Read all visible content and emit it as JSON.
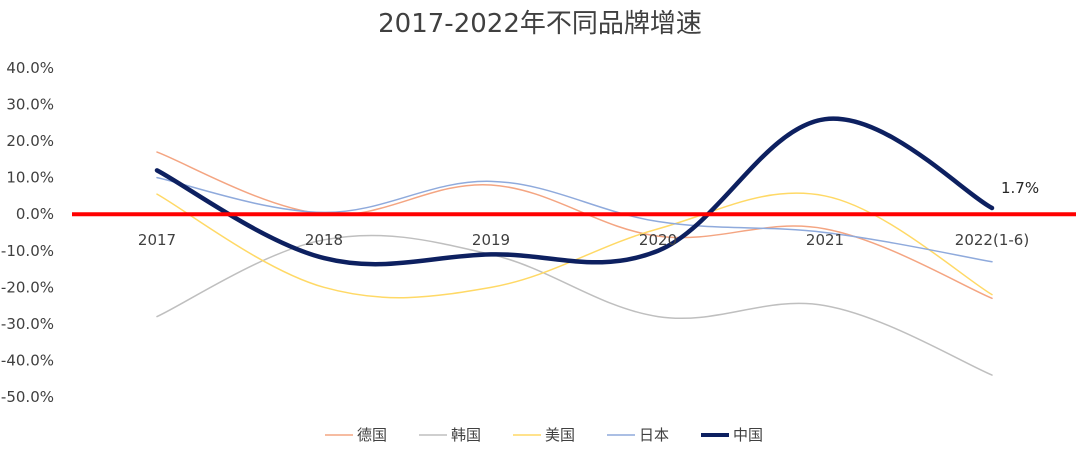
{
  "chart_data": {
    "type": "line",
    "title": "2017-2022年不同品牌增速",
    "categories": [
      "2017",
      "2018",
      "2019",
      "2020",
      "2021",
      "2022(1-6)"
    ],
    "y_ticks": [
      "40.0%",
      "30.0%",
      "20.0%",
      "10.0%",
      "0.0%",
      "-10.0%",
      "-20.0%",
      "-30.0%",
      "-40.0%",
      "-50.0%"
    ],
    "ylim": [
      -50,
      40
    ],
    "y_unit": "percent",
    "grid": false,
    "legend_position": "bottom",
    "smooth": true,
    "zero_line_color": "#ff0000",
    "series": [
      {
        "name": "德国",
        "color": "#f4a582",
        "width": 1.5,
        "values": [
          17,
          0,
          8,
          -6,
          -4,
          -23
        ]
      },
      {
        "name": "韩国",
        "color": "#bfbfbf",
        "width": 1.5,
        "values": [
          -28,
          -7,
          -11,
          -28,
          -25,
          -44
        ]
      },
      {
        "name": "美国",
        "color": "#ffd966",
        "width": 1.5,
        "values": [
          5.5,
          -20,
          -20,
          -4,
          5,
          -22
        ]
      },
      {
        "name": "日本",
        "color": "#8faadc",
        "width": 1.5,
        "values": [
          10,
          0.5,
          9,
          -2,
          -5,
          -13
        ]
      },
      {
        "name": "中国",
        "color": "#0d2060",
        "width": 4.5,
        "values": [
          12,
          -12,
          -11,
          -10,
          26,
          1.7
        ]
      }
    ],
    "data_labels": [
      {
        "series": "中国",
        "category": "2022(1-6)",
        "text": "1.7%"
      }
    ]
  }
}
